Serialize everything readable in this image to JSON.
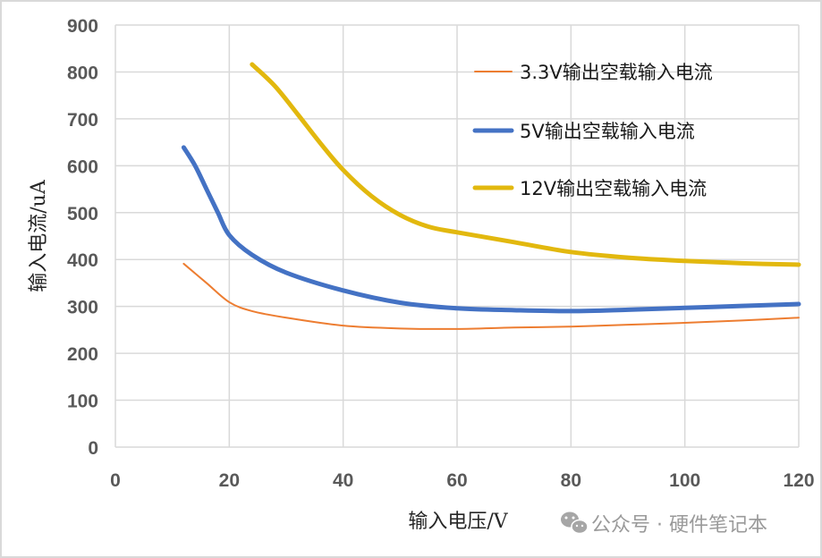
{
  "chart_data": {
    "type": "line",
    "title": "",
    "xlabel": "输入电压/V",
    "ylabel": "输入电流/uA",
    "xlim": [
      0,
      120
    ],
    "ylim": [
      0,
      900
    ],
    "x_ticks": [
      0,
      20,
      40,
      60,
      80,
      100,
      120
    ],
    "y_ticks": [
      0,
      100,
      200,
      300,
      400,
      500,
      600,
      700,
      800,
      900
    ],
    "grid": true,
    "legend_position": "upper right (inside plot)",
    "series": [
      {
        "name": "3.3V输出空载输入电流",
        "color": "#ED7D31",
        "line_width": 2,
        "x": [
          12,
          16,
          20,
          24,
          30,
          40,
          50,
          60,
          70,
          80,
          90,
          100,
          110,
          120
        ],
        "y": [
          391,
          350,
          309,
          290,
          276,
          259,
          253,
          252,
          255,
          257,
          261,
          265,
          270,
          276
        ]
      },
      {
        "name": "5V输出空载输入电流",
        "color": "#4472C4",
        "line_width": 5,
        "x": [
          12,
          14,
          16,
          18,
          20,
          24,
          30,
          40,
          50,
          60,
          70,
          80,
          90,
          100,
          110,
          120
        ],
        "y": [
          639,
          600,
          550,
          500,
          452,
          410,
          372,
          334,
          308,
          296,
          292,
          290,
          293,
          297,
          301,
          305
        ]
      },
      {
        "name": "12V输出空载输入电流",
        "color": "#E2B80E",
        "line_width": 5,
        "x": [
          24,
          28,
          32,
          36,
          40,
          45,
          50,
          55,
          60,
          70,
          80,
          90,
          100,
          110,
          120
        ],
        "y": [
          816,
          770,
          710,
          648,
          591,
          535,
          495,
          470,
          458,
          437,
          416,
          404,
          397,
          392,
          389
        ]
      }
    ]
  },
  "labels": {
    "x_axis_title": "输入电压/V",
    "y_axis_title": "输入电流/uA",
    "watermark": "公众号 · 硬件笔记本",
    "watermark_icon": "wechat-icon"
  }
}
